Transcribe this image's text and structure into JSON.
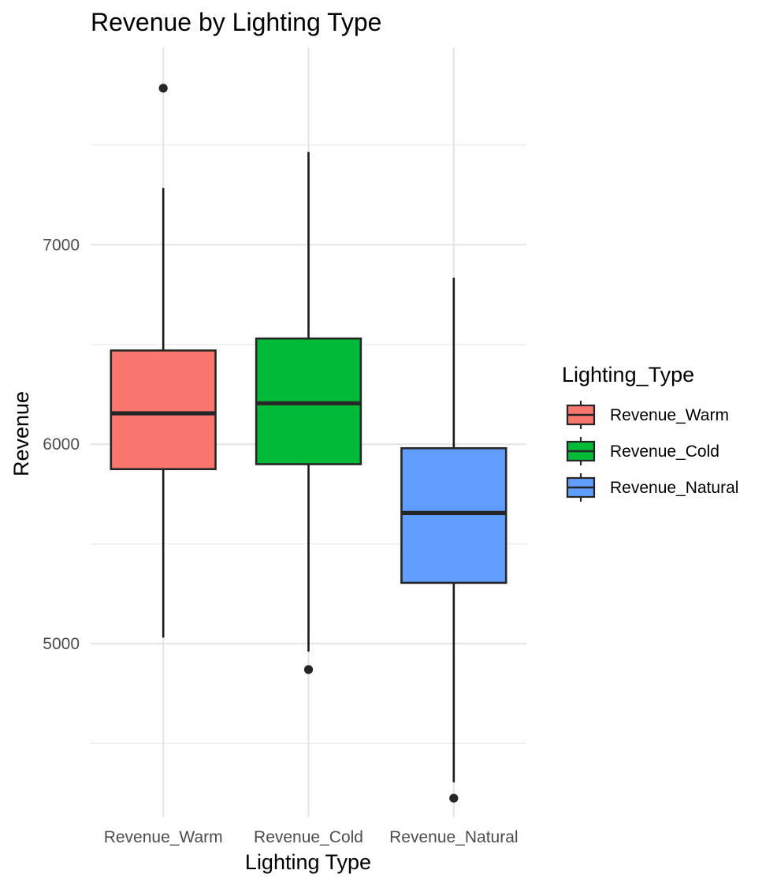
{
  "chart_data": {
    "type": "boxplot",
    "title": "Revenue by Lighting Type",
    "xlabel": "Lighting Type",
    "ylabel": "Revenue",
    "ylim": [
      4130,
      7990
    ],
    "yticks": [
      5000,
      6000,
      7000
    ],
    "y_minor_ticks": [
      4500,
      5500,
      6500,
      7500
    ],
    "grid": true,
    "legend": {
      "title": "Lighting_Type",
      "position": "right"
    },
    "categories": [
      "Revenue_Warm",
      "Revenue_Cold",
      "Revenue_Natural"
    ],
    "series": [
      {
        "name": "Revenue_Warm",
        "color": "#F8766D",
        "whisker_low": 5030,
        "q1": 5875,
        "median": 6155,
        "q3": 6470,
        "whisker_high": 7285,
        "outliers": [
          7785
        ]
      },
      {
        "name": "Revenue_Cold",
        "color": "#00BA38",
        "whisker_low": 4960,
        "q1": 5900,
        "median": 6205,
        "q3": 6530,
        "whisker_high": 7465,
        "outliers": [
          4870
        ]
      },
      {
        "name": "Revenue_Natural",
        "color": "#619CFF",
        "whisker_low": 4305,
        "q1": 5305,
        "median": 5655,
        "q3": 5980,
        "whisker_high": 6835,
        "outliers": [
          4225
        ]
      }
    ]
  }
}
